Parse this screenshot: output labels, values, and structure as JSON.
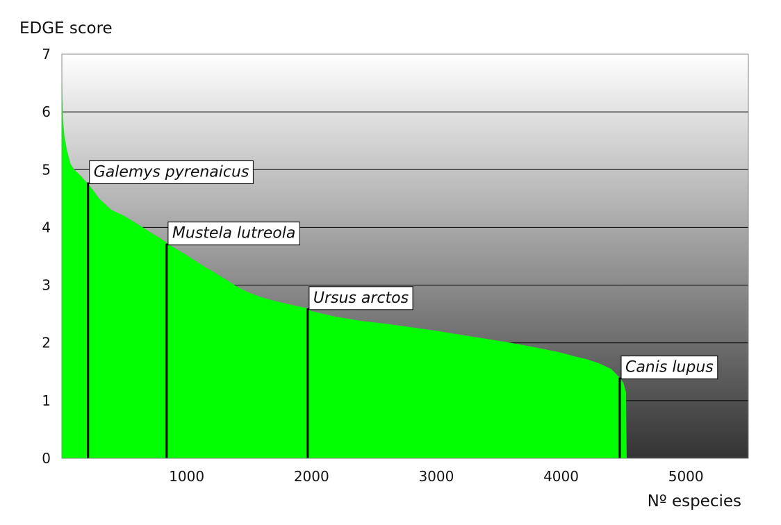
{
  "chart_data": {
    "type": "area",
    "title": "",
    "ylabel": "EDGE score",
    "xlabel": "Nº especies",
    "xlim": [
      0,
      5500
    ],
    "ylim": [
      0,
      7
    ],
    "x_ticks": [
      "1000",
      "2000",
      "3000",
      "4000",
      "5000"
    ],
    "y_ticks": [
      "0",
      "1",
      "2",
      "3",
      "4",
      "5",
      "6",
      "7"
    ],
    "grid": "horizontal",
    "colors": {
      "area": "#00ff00",
      "background_top": "#ffffff",
      "background_bottom": "#333333",
      "marker": "#000000"
    },
    "series": [
      {
        "x": [
          1,
          5,
          10,
          20,
          40,
          70,
          100,
          150,
          200,
          250,
          300,
          400,
          500,
          600,
          700,
          800,
          850,
          900,
          1000,
          1100,
          1200,
          1300,
          1400,
          1500,
          1600,
          1700,
          1800,
          1900,
          1970,
          2000,
          2200,
          2400,
          2600,
          2800,
          3000,
          3200,
          3400,
          3600,
          3800,
          4000,
          4100,
          4200,
          4300,
          4400,
          4470,
          4500,
          4520,
          4525
        ],
        "y": [
          6.8,
          6.2,
          5.85,
          5.6,
          5.35,
          5.1,
          5.0,
          4.9,
          4.78,
          4.65,
          4.5,
          4.3,
          4.2,
          4.07,
          3.93,
          3.8,
          3.72,
          3.65,
          3.52,
          3.38,
          3.25,
          3.12,
          2.98,
          2.87,
          2.79,
          2.73,
          2.68,
          2.63,
          2.6,
          2.55,
          2.45,
          2.38,
          2.33,
          2.27,
          2.21,
          2.14,
          2.07,
          2.0,
          1.92,
          1.83,
          1.77,
          1.72,
          1.65,
          1.55,
          1.4,
          1.3,
          1.15,
          0
        ]
      }
    ],
    "annotations": [
      {
        "label": "Galemys pyrenaicus",
        "x": 210,
        "y": 4.78
      },
      {
        "label": "Mustela lutreola",
        "x": 840,
        "y": 3.72
      },
      {
        "label": "Ursus arctos",
        "x": 1970,
        "y": 2.6
      },
      {
        "label": "Canis lupus",
        "x": 4470,
        "y": 1.4
      }
    ]
  }
}
